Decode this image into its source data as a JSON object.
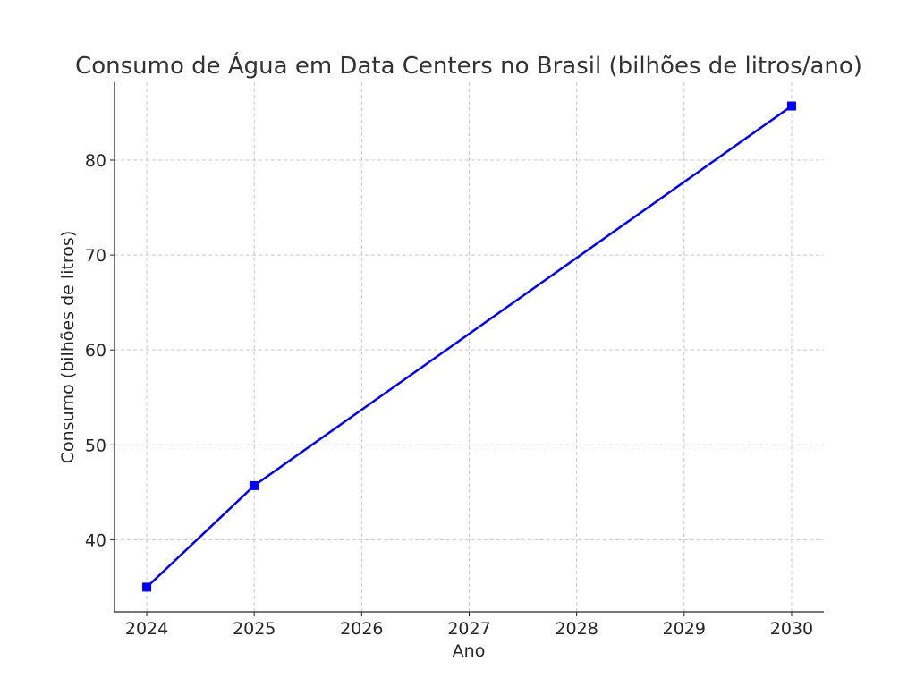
{
  "chart_data": {
    "type": "line",
    "title": "Consumo de Água em Data Centers no Brasil (bilhões de litros/ano)",
    "xlabel": "Ano",
    "ylabel": "Consumo (bilhões de litros)",
    "x": [
      2024,
      2025,
      2030
    ],
    "series": [
      {
        "values": [
          35.0,
          45.7,
          85.7
        ],
        "color": "#0000ff",
        "marker": "square"
      }
    ],
    "xticks": [
      "2024",
      "2025",
      "2026",
      "2027",
      "2028",
      "2029",
      "2030"
    ],
    "yticks": [
      "40",
      "50",
      "60",
      "70",
      "80"
    ],
    "xlim": [
      2023.7,
      2030.3
    ],
    "ylim": [
      32.4,
      88.2
    ],
    "grid": true
  }
}
